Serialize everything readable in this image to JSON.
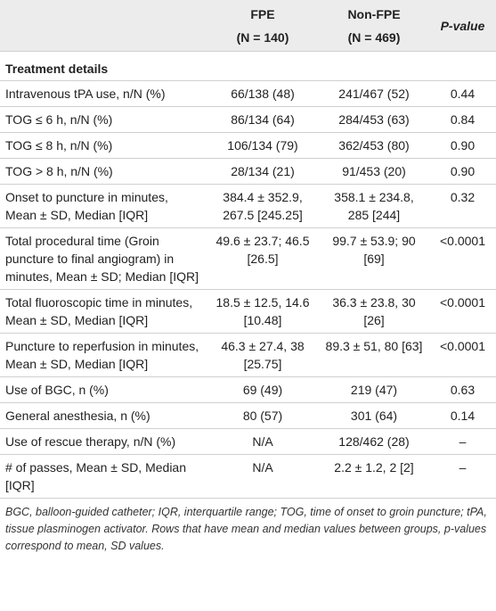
{
  "table": {
    "header": [
      {
        "title": "FPE",
        "subtitle": "(N = 140)"
      },
      {
        "title": "Non-FPE",
        "subtitle": "(N = 469)"
      },
      {
        "title": "P-value"
      }
    ],
    "section": "Treatment details",
    "rows": [
      [
        "Intravenous tPA use, n/N (%)",
        "66/138 (48)",
        "241/467 (52)",
        "0.44"
      ],
      [
        "TOG ≤ 6 h, n/N (%)",
        "86/134 (64)",
        "284/453 (63)",
        "0.84"
      ],
      [
        "TOG ≤ 8 h, n/N (%)",
        "106/134 (79)",
        "362/453 (80)",
        "0.90"
      ],
      [
        "TOG > 8 h, n/N (%)",
        "28/134 (21)",
        "91/453 (20)",
        "0.90"
      ],
      [
        "Onset to puncture in minutes, Mean ± SD, Median [IQR]",
        "384.4 ± 352.9, 267.5 [245.25]",
        "358.1 ± 234.8, 285 [244]",
        "0.32"
      ],
      [
        "Total procedural time (Groin puncture to final angiogram) in minutes, Mean ± SD; Median [IQR]",
        "49.6 ± 23.7; 46.5 [26.5]",
        "99.7 ± 53.9; 90 [69]",
        "<0.0001"
      ],
      [
        "Total fluoroscopic time in minutes, Mean ± SD, Median [IQR]",
        "18.5 ± 12.5, 14.6 [10.48]",
        "36.3 ± 23.8, 30 [26]",
        "<0.0001"
      ],
      [
        "Puncture to reperfusion in minutes, Mean ± SD, Median [IQR]",
        "46.3 ± 27.4, 38 [25.75]",
        "89.3 ± 51, 80 [63]",
        "<0.0001"
      ],
      [
        "Use of BGC, n (%)",
        "69 (49)",
        "219 (47)",
        "0.63"
      ],
      [
        "General anesthesia, n (%)",
        "80 (57)",
        "301 (64)",
        "0.14"
      ],
      [
        "Use of rescue therapy, n/N (%)",
        "N/A",
        "128/462 (28)",
        "–"
      ],
      [
        "# of passes, Mean ± SD, Median [IQR]",
        "N/A",
        "2.2 ± 1.2, 2 [2]",
        "–"
      ]
    ],
    "footnote": "BGC, balloon-guided catheter; IQR, interquartile range; TOG, time of onset to groin puncture; tPA, tissue plasminogen activator. Rows that have mean and median values between groups, p-values correspond to mean, SD values."
  }
}
